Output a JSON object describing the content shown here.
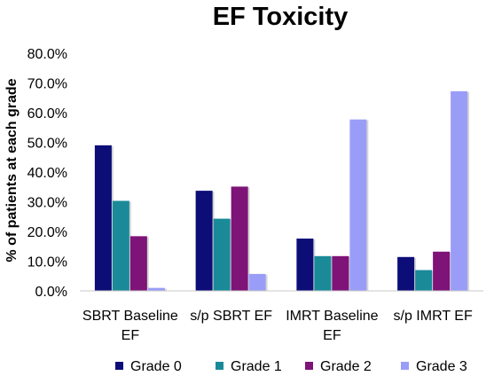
{
  "chart_data": {
    "type": "bar",
    "title": "EF Toxicity",
    "xlabel": "",
    "ylabel": "% of patients  at each grade",
    "ylim": [
      0,
      80
    ],
    "yticks": [
      "0.0%",
      "10.0%",
      "20.0%",
      "30.0%",
      "40.0%",
      "50.0%",
      "60.0%",
      "70.0%",
      "80.0%"
    ],
    "grid": false,
    "legend_position": "bottom",
    "categories": [
      [
        "SBRT Baseline",
        "EF"
      ],
      [
        "s/p SBRT EF"
      ],
      [
        "IMRT Baseline",
        "EF"
      ],
      [
        "s/p IMRT EF"
      ]
    ],
    "series": [
      {
        "name": "Grade 0",
        "color": "#0d0d78",
        "values": [
          49.0,
          33.7,
          17.6,
          11.4
        ]
      },
      {
        "name": "Grade 1",
        "color": "#1a8a99",
        "values": [
          30.3,
          24.3,
          11.7,
          7.0
        ]
      },
      {
        "name": "Grade 2",
        "color": "#7e1378",
        "values": [
          18.4,
          35.1,
          11.7,
          13.2
        ]
      },
      {
        "name": "Grade 3",
        "color": "#9a9df7",
        "values": [
          1.0,
          5.7,
          57.7,
          67.2
        ]
      }
    ]
  }
}
